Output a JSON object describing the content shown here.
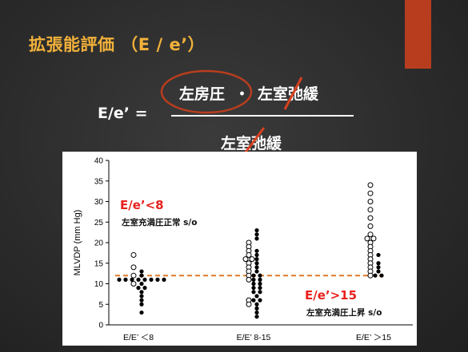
{
  "slide": {
    "title": "拡張能評価 （E / e’）"
  },
  "equation": {
    "lhs": "E/e’ =",
    "numerator_left": "左房圧",
    "numerator_dot": "・",
    "numerator_right": "左室弛緩",
    "denominator": "左室弛緩"
  },
  "colors": {
    "accent": "#b83d1e",
    "title": "#f2b13a",
    "red": "#e8201c",
    "circle": "#b83d1e",
    "strike": "#d9401f",
    "cutoff_line": "#e07a25"
  },
  "annotations": {
    "low_label": "E/e’<8",
    "low_desc": "左室充満圧正常 s/o",
    "high_label": "E/e’>15",
    "high_desc": "左室充満圧上昇 s/o"
  },
  "chart_data": {
    "type": "scatter",
    "ylabel": "MLVDP (mm Hg)",
    "ylim": [
      0,
      40
    ],
    "yticks": [
      0,
      5,
      10,
      15,
      20,
      25,
      30,
      35,
      40
    ],
    "categories": [
      "E/E’ ＜8",
      "E/E’ 8-15",
      "E/E’ ＞15"
    ],
    "reference_line": 12,
    "grid": false,
    "series": [
      {
        "name": "closed",
        "points": [
          {
            "x": 0,
            "y": 11
          },
          {
            "x": 0,
            "y": 11
          },
          {
            "x": 0,
            "y": 11
          },
          {
            "x": 0,
            "y": 11
          },
          {
            "x": 0,
            "y": 11
          },
          {
            "x": 0,
            "y": 11
          },
          {
            "x": 0,
            "y": 11
          },
          {
            "x": 0,
            "y": 11
          },
          {
            "x": 0,
            "y": 10
          },
          {
            "x": 0,
            "y": 9
          },
          {
            "x": 0,
            "y": 8
          },
          {
            "x": 0,
            "y": 7
          },
          {
            "x": 0,
            "y": 6
          },
          {
            "x": 0,
            "y": 5
          },
          {
            "x": 0,
            "y": 3
          },
          {
            "x": 0,
            "y": 12
          },
          {
            "x": 0,
            "y": 13
          },
          {
            "x": 0,
            "y": 9
          },
          {
            "x": 1,
            "y": 23
          },
          {
            "x": 1,
            "y": 22
          },
          {
            "x": 1,
            "y": 21
          },
          {
            "x": 1,
            "y": 18
          },
          {
            "x": 1,
            "y": 17
          },
          {
            "x": 1,
            "y": 16
          },
          {
            "x": 1,
            "y": 15
          },
          {
            "x": 1,
            "y": 14
          },
          {
            "x": 1,
            "y": 13
          },
          {
            "x": 1,
            "y": 12
          },
          {
            "x": 1,
            "y": 11
          },
          {
            "x": 1,
            "y": 10
          },
          {
            "x": 1,
            "y": 9
          },
          {
            "x": 1,
            "y": 8
          },
          {
            "x": 1,
            "y": 7
          },
          {
            "x": 1,
            "y": 6
          },
          {
            "x": 1,
            "y": 5
          },
          {
            "x": 1,
            "y": 4
          },
          {
            "x": 1,
            "y": 3
          },
          {
            "x": 1,
            "y": 2
          },
          {
            "x": 1,
            "y": 11
          },
          {
            "x": 1,
            "y": 12
          },
          {
            "x": 1,
            "y": 10
          },
          {
            "x": 1,
            "y": 9
          },
          {
            "x": 1,
            "y": 8
          },
          {
            "x": 1,
            "y": 6
          },
          {
            "x": 2,
            "y": 17
          },
          {
            "x": 2,
            "y": 15
          },
          {
            "x": 2,
            "y": 14
          },
          {
            "x": 2,
            "y": 13
          },
          {
            "x": 2,
            "y": 12
          },
          {
            "x": 2,
            "y": 12
          }
        ]
      },
      {
        "name": "open",
        "points": [
          {
            "x": 0,
            "y": 17
          },
          {
            "x": 0,
            "y": 14
          },
          {
            "x": 0,
            "y": 12
          },
          {
            "x": 0,
            "y": 10
          },
          {
            "x": 1,
            "y": 20
          },
          {
            "x": 1,
            "y": 19
          },
          {
            "x": 1,
            "y": 18
          },
          {
            "x": 1,
            "y": 17
          },
          {
            "x": 1,
            "y": 16
          },
          {
            "x": 1,
            "y": 15
          },
          {
            "x": 1,
            "y": 14
          },
          {
            "x": 1,
            "y": 13
          },
          {
            "x": 1,
            "y": 12
          },
          {
            "x": 1,
            "y": 11
          },
          {
            "x": 1,
            "y": 6
          },
          {
            "x": 1,
            "y": 5
          },
          {
            "x": 1,
            "y": 16
          },
          {
            "x": 2,
            "y": 34
          },
          {
            "x": 2,
            "y": 32
          },
          {
            "x": 2,
            "y": 30
          },
          {
            "x": 2,
            "y": 28
          },
          {
            "x": 2,
            "y": 26
          },
          {
            "x": 2,
            "y": 24
          },
          {
            "x": 2,
            "y": 22
          },
          {
            "x": 2,
            "y": 21
          },
          {
            "x": 2,
            "y": 20
          },
          {
            "x": 2,
            "y": 19
          },
          {
            "x": 2,
            "y": 18
          },
          {
            "x": 2,
            "y": 17
          },
          {
            "x": 2,
            "y": 16
          },
          {
            "x": 2,
            "y": 15
          },
          {
            "x": 2,
            "y": 14
          },
          {
            "x": 2,
            "y": 13
          },
          {
            "x": 2,
            "y": 12
          },
          {
            "x": 2,
            "y": 21
          }
        ]
      }
    ]
  }
}
